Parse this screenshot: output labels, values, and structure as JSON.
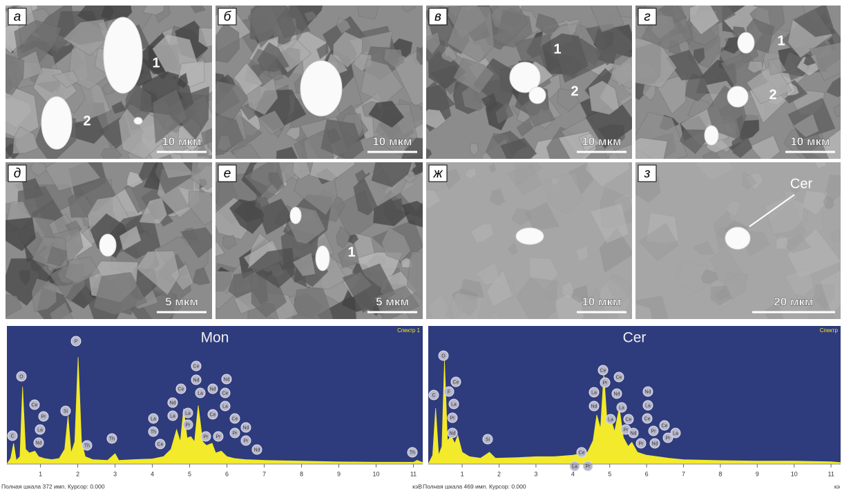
{
  "panels": [
    {
      "letter": "а",
      "scale_bar": "10 мкм",
      "annotations": [
        "1",
        "2"
      ]
    },
    {
      "letter": "б",
      "scale_bar": "10 мкм",
      "annotations": []
    },
    {
      "letter": "в",
      "scale_bar": "10 мкм",
      "annotations": [
        "1",
        "2"
      ]
    },
    {
      "letter": "г",
      "scale_bar": "10 мкм",
      "annotations": [
        "1",
        "2"
      ]
    },
    {
      "letter": "д",
      "scale_bar": "5 мкм",
      "annotations": []
    },
    {
      "letter": "е",
      "scale_bar": "5 мкм",
      "annotations": [
        "1"
      ]
    },
    {
      "letter": "ж",
      "scale_bar": "10 мкм",
      "annotations": []
    },
    {
      "letter": "з",
      "scale_bar": "20 мкм",
      "annotations": [
        "Cer"
      ]
    }
  ],
  "spectra": [
    {
      "type": "area",
      "title": "Mon",
      "label": "Спектр 1",
      "footer": "Полная шкала 372 имп. Курсор: 0.000",
      "unit": "кэВ",
      "xlim": [
        0.1,
        11.25
      ],
      "ylim": [
        0,
        372
      ],
      "xticks": [
        1,
        2,
        3,
        4,
        5,
        6,
        7,
        8,
        9,
        10,
        11
      ],
      "color": "#f2ea2a",
      "x": [
        0.1,
        0.2,
        0.28,
        0.35,
        0.45,
        0.52,
        0.6,
        0.7,
        0.85,
        0.95,
        1.1,
        1.3,
        1.5,
        1.65,
        1.74,
        1.82,
        1.92,
        2.01,
        2.1,
        2.2,
        2.4,
        2.8,
        3.0,
        3.1,
        3.5,
        4.0,
        4.3,
        4.5,
        4.65,
        4.75,
        4.84,
        4.93,
        5.03,
        5.13,
        5.23,
        5.35,
        5.45,
        5.6,
        5.7,
        5.85,
        6.0,
        6.2,
        6.5,
        7.0,
        8,
        9,
        10,
        11,
        11.1,
        11.25
      ],
      "values": [
        0,
        15,
        56,
        10,
        20,
        208,
        40,
        30,
        35,
        20,
        15,
        12,
        15,
        40,
        130,
        30,
        60,
        288,
        60,
        20,
        12,
        10,
        28,
        10,
        12,
        14,
        20,
        40,
        93,
        60,
        149,
        70,
        74,
        60,
        158,
        60,
        50,
        56,
        30,
        35,
        20,
        15,
        12,
        10,
        8,
        6,
        5,
        5,
        10,
        4
      ],
      "peak_labels": [
        "C",
        "O",
        "Ce",
        "Pr",
        "La",
        "Nd",
        "Si",
        "P",
        "Th",
        "Th",
        "La",
        "Th",
        "Ce",
        "Nd",
        "La",
        "Ce",
        "La",
        "Pr",
        "Ce",
        "Nd",
        "La",
        "Pr",
        "Nd",
        "Ce",
        "Pr",
        "Nd",
        "Ce",
        "La",
        "Ce",
        "Pr",
        "Nd",
        "Pr",
        "Nd",
        "Th"
      ]
    },
    {
      "type": "area",
      "title": "Cer",
      "label": "Спектр",
      "footer": "Полная шкала 469 имп. Курсор: 0.000",
      "unit": "кэ",
      "xlim": [
        0.08,
        11.26
      ],
      "ylim": [
        0,
        469
      ],
      "xticks": [
        1,
        2,
        3,
        4,
        5,
        6,
        7,
        8,
        9,
        10,
        11
      ],
      "color": "#f2ea2a",
      "x": [
        0.08,
        0.2,
        0.28,
        0.36,
        0.45,
        0.52,
        0.6,
        0.7,
        0.8,
        0.88,
        1.0,
        1.2,
        1.5,
        1.74,
        1.9,
        2.5,
        3.0,
        3.5,
        4.0,
        4.4,
        4.55,
        4.65,
        4.75,
        4.84,
        4.93,
        5.03,
        5.13,
        5.26,
        5.37,
        5.5,
        5.6,
        5.75,
        6.0,
        6.3,
        6.6,
        7.0,
        8,
        9,
        10,
        11,
        11.26
      ],
      "values": [
        0,
        30,
        190,
        30,
        60,
        353,
        80,
        95,
        70,
        97,
        40,
        25,
        20,
        40,
        20,
        22,
        25,
        25,
        30,
        40,
        80,
        167,
        120,
        306,
        140,
        155,
        110,
        190,
        90,
        60,
        74,
        40,
        30,
        25,
        20,
        15,
        12,
        10,
        10,
        8,
        5
      ],
      "peak_labels": [
        "C",
        "O",
        "F",
        "Ce",
        "La",
        "Pr",
        "Nd",
        "Si",
        "Ce",
        "La",
        "Pr",
        "La",
        "Nd",
        "Ce",
        "Pr",
        "Ce",
        "Nd",
        "La",
        "La",
        "Ce",
        "Pr",
        "Nd",
        "Nd",
        "La",
        "Ce",
        "Pr",
        "Pr",
        "Ce",
        "Nd",
        "Pr",
        "La"
      ]
    }
  ]
}
